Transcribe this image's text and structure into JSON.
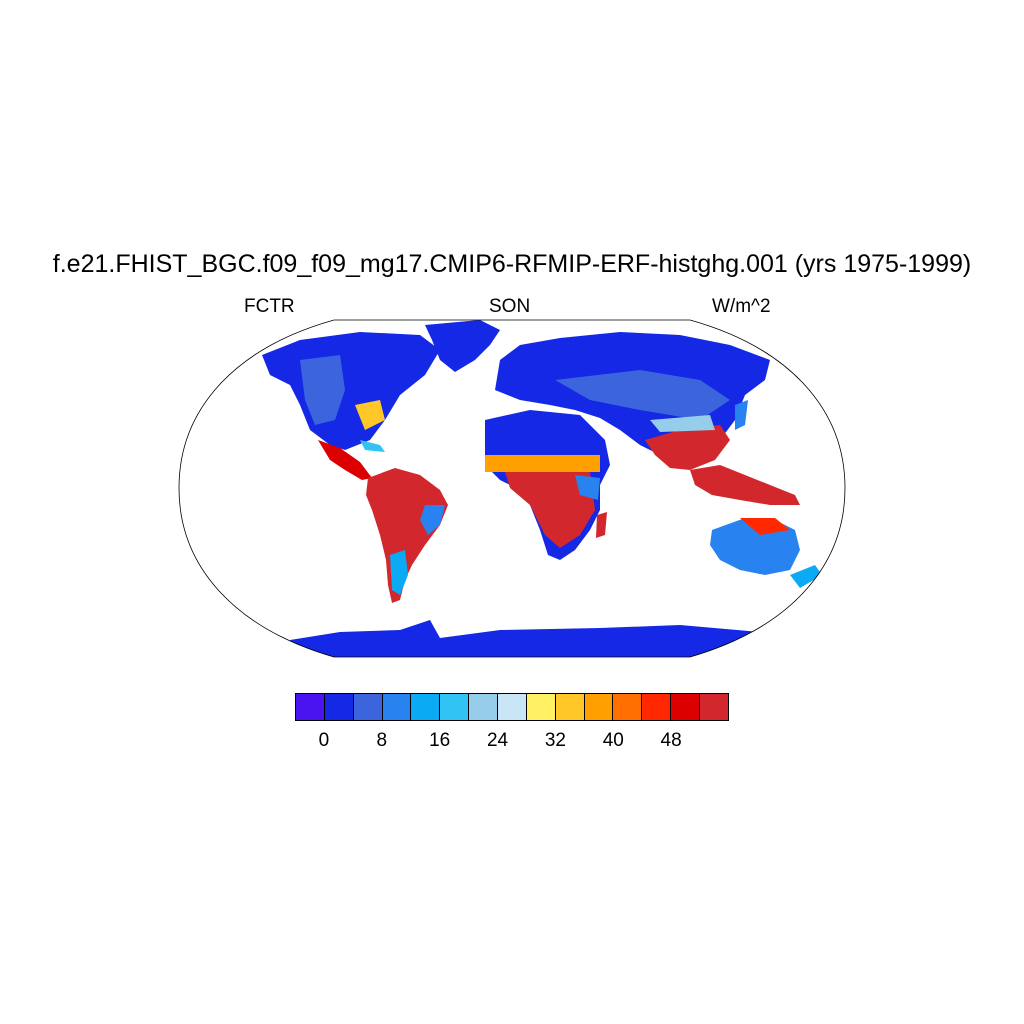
{
  "title": "f.e21.FHIST_BGC.f09_f09_mg17.CMIP6-RFMIP-ERF-histghg.001 (yrs 1975-1999)",
  "left_string": "FCTR",
  "center_string": "SON",
  "right_string": "W/m^2",
  "projection": "Robinson (global, land-only field)",
  "colorbar": {
    "colors": [
      "#4a14f0",
      "#1428e6",
      "#3c64dc",
      "#2882f0",
      "#0aaaf5",
      "#32c3f5",
      "#96cdeb",
      "#c8e6f5",
      "#fff064",
      "#ffc828",
      "#ffa000",
      "#ff6e00",
      "#ff2800",
      "#dc0000",
      "#d2282d"
    ],
    "tick_labels": [
      "0",
      "8",
      "16",
      "24",
      "32",
      "40",
      "48"
    ]
  }
}
